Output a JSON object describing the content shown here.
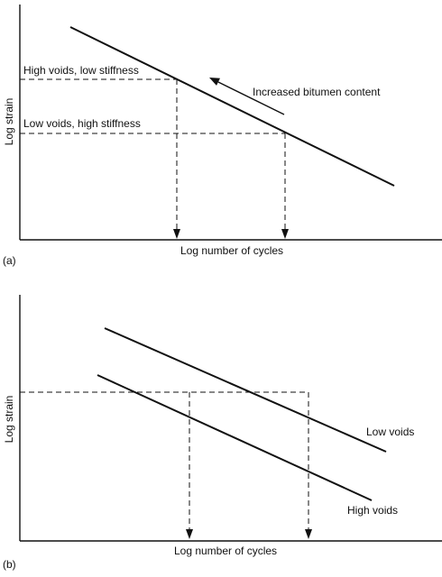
{
  "panel_a": {
    "tag": "(a)",
    "ylabel": "Log strain",
    "xlabel": "Log number of cycles",
    "labels": {
      "high_voids": "High voids, low stiffness",
      "low_voids": "Low voids, high stiffness",
      "trend": "Increased bitumen content"
    }
  },
  "panel_b": {
    "tag": "(b)",
    "ylabel": "Log strain",
    "xlabel": "Log number of cycles",
    "labels": {
      "low_voids": "Low voids",
      "high_voids": "High voids"
    }
  },
  "colors": {
    "ink": "#111111",
    "background": "#ffffff"
  }
}
